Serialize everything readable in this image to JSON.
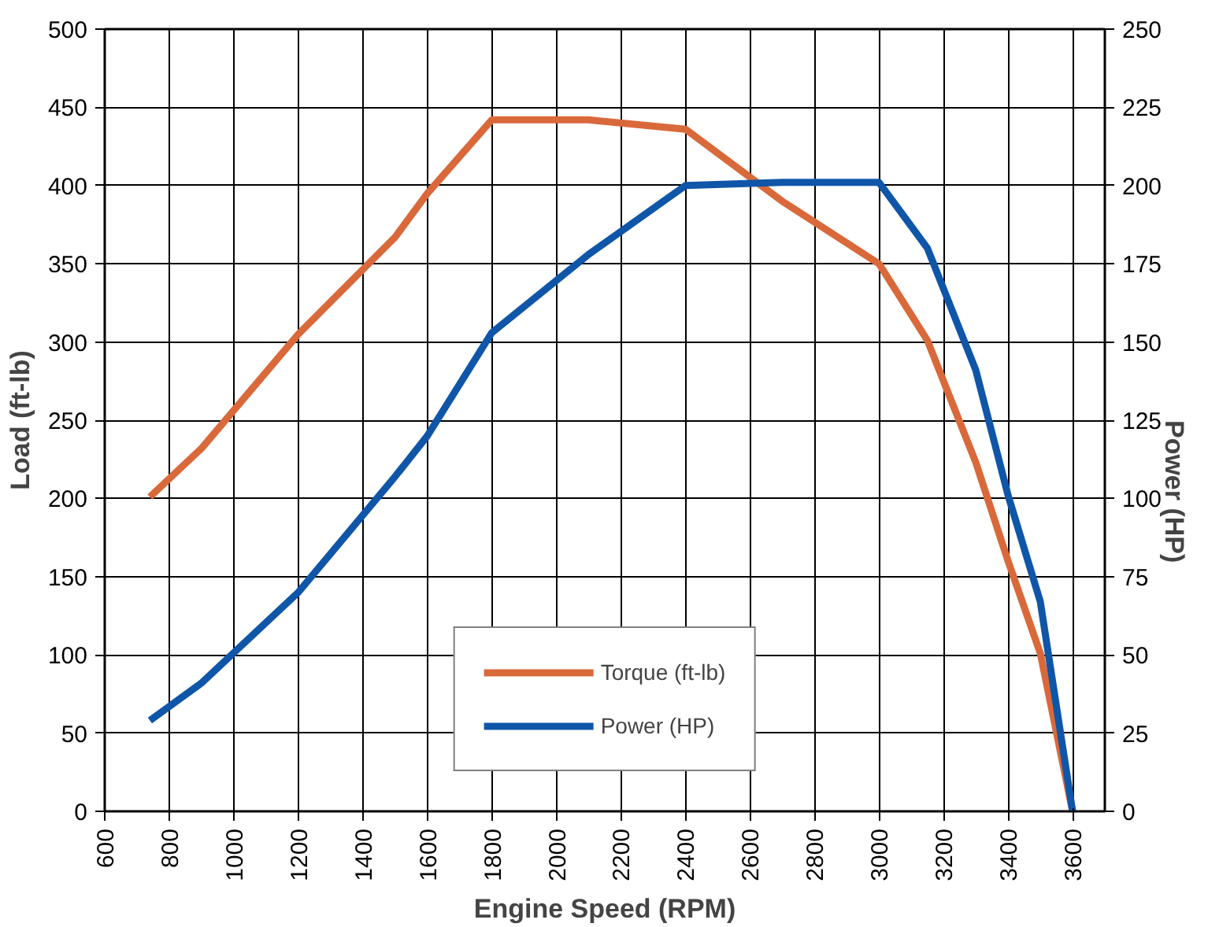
{
  "chart_data": {
    "type": "line",
    "xlabel": "Engine Speed (RPM)",
    "ylabel": "Load (ft-lb)",
    "y2label": "Power (HP)",
    "x": [
      740,
      900,
      1200,
      1500,
      1600,
      1800,
      2100,
      2400,
      2700,
      3000,
      3150,
      3300,
      3400,
      3500,
      3600
    ],
    "series": [
      {
        "name": "Torque (ft-lb)",
        "color": "#d9693a",
        "values": [
          201,
          232,
          305,
          367,
          395,
          442,
          442,
          436,
          390,
          350,
          301,
          223,
          160,
          101,
          0
        ]
      },
      {
        "name": "Power (HP)",
        "color": "#0f56a8",
        "axis": "y2",
        "values": [
          29,
          41,
          70,
          107,
          120,
          153,
          178,
          200,
          201,
          201,
          180,
          141,
          101,
          67,
          0
        ]
      }
    ],
    "xlim": [
      600,
      3700
    ],
    "xticks": [
      600,
      800,
      1000,
      1200,
      1400,
      1600,
      1800,
      2000,
      2200,
      2400,
      2600,
      2800,
      3000,
      3200,
      3400,
      3600
    ],
    "ylim": [
      0,
      500
    ],
    "yticks": [
      0,
      50,
      100,
      150,
      200,
      250,
      300,
      350,
      400,
      450,
      500
    ],
    "y2lim": [
      0,
      250
    ],
    "y2ticks": [
      0,
      25,
      50,
      75,
      100,
      125,
      150,
      175,
      200,
      225,
      250
    ],
    "grid": true,
    "legend": "bottom",
    "marker": "none",
    "line_style": "solid"
  }
}
